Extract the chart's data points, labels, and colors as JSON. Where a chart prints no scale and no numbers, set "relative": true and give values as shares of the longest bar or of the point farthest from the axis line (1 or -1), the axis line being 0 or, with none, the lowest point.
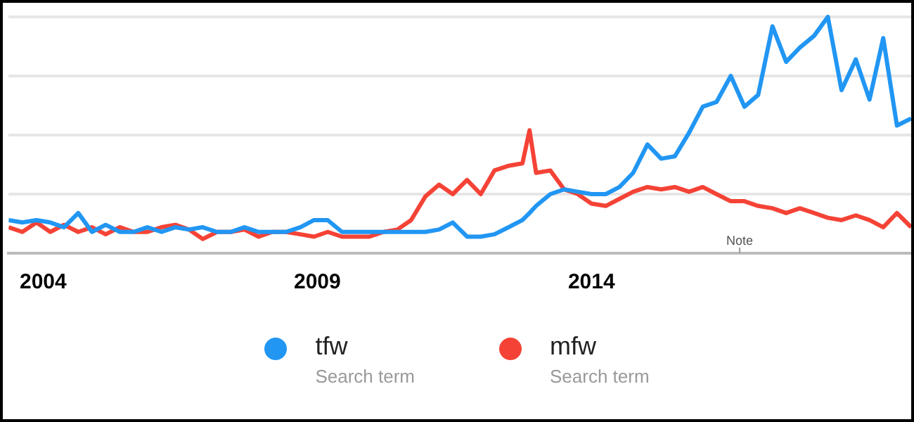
{
  "chart_data": {
    "type": "line",
    "relative": true,
    "grid": "y",
    "legend": "bottom",
    "marker": "none",
    "line_style": "solid",
    "x": [
      2003.37,
      2003.62,
      2003.88,
      2004.13,
      2004.38,
      2004.64,
      2004.89,
      2005.14,
      2005.4,
      2005.65,
      2005.9,
      2006.16,
      2006.41,
      2006.66,
      2006.91,
      2007.17,
      2007.42,
      2007.67,
      2007.93,
      2008.18,
      2008.43,
      2008.69,
      2008.94,
      2009.19,
      2009.45,
      2009.7,
      2009.95,
      2010.21,
      2010.46,
      2010.71,
      2010.97,
      2011.22,
      2011.47,
      2011.73,
      2011.98,
      2012.23,
      2012.49,
      2012.74,
      2012.87,
      2012.99,
      2013.25,
      2013.5,
      2013.75,
      2014.0,
      2014.26,
      2014.51,
      2014.76,
      2015.02,
      2015.27,
      2015.52,
      2015.78,
      2016.03,
      2016.28,
      2016.54,
      2016.79,
      2017.04,
      2017.3,
      2017.55,
      2017.8,
      2018.06,
      2018.31,
      2018.56,
      2018.82,
      2019.07,
      2019.32,
      2019.57,
      2019.83
    ],
    "xlim": [
      2003.37,
      2019.83
    ],
    "xticks": [
      2004,
      2009,
      2014
    ],
    "series": [
      {
        "name": "tfw",
        "color": "#2196f3",
        "values": [
          0.14,
          0.13,
          0.14,
          0.13,
          0.11,
          0.17,
          0.09,
          0.12,
          0.09,
          0.09,
          0.11,
          0.09,
          0.11,
          0.1,
          0.11,
          0.09,
          0.09,
          0.11,
          0.09,
          0.09,
          0.09,
          0.11,
          0.14,
          0.14,
          0.09,
          0.09,
          0.09,
          0.09,
          0.09,
          0.09,
          0.09,
          0.1,
          0.13,
          0.07,
          0.07,
          0.08,
          0.11,
          0.14,
          0.17,
          0.2,
          0.25,
          0.27,
          0.26,
          0.25,
          0.25,
          0.28,
          0.34,
          0.46,
          0.4,
          0.41,
          0.51,
          0.62,
          0.64,
          0.75,
          0.62,
          0.67,
          0.96,
          0.81,
          0.87,
          0.92,
          1,
          0.69,
          0.82,
          0.65,
          0.91,
          0.54,
          0.57
        ]
      },
      {
        "name": "mfw",
        "color": "#f44336",
        "values": [
          0.11,
          0.09,
          0.13,
          0.09,
          0.12,
          0.09,
          0.11,
          0.08,
          0.11,
          0.09,
          0.09,
          0.11,
          0.12,
          0.1,
          0.06,
          0.09,
          0.09,
          0.1,
          0.07,
          0.09,
          0.09,
          0.08,
          0.07,
          0.09,
          0.07,
          0.07,
          0.07,
          0.09,
          0.1,
          0.14,
          0.24,
          0.29,
          0.25,
          0.31,
          0.25,
          0.35,
          0.37,
          0.38,
          0.52,
          0.34,
          0.35,
          0.27,
          0.25,
          0.21,
          0.2,
          0.23,
          0.26,
          0.28,
          0.27,
          0.28,
          0.26,
          0.28,
          0.25,
          0.22,
          0.22,
          0.2,
          0.19,
          0.17,
          0.19,
          0.17,
          0.15,
          0.14,
          0.16,
          0.14,
          0.11,
          0.17,
          0.11
        ]
      }
    ],
    "annotations": [
      "Note",
      "Search term",
      "Search term"
    ]
  }
}
